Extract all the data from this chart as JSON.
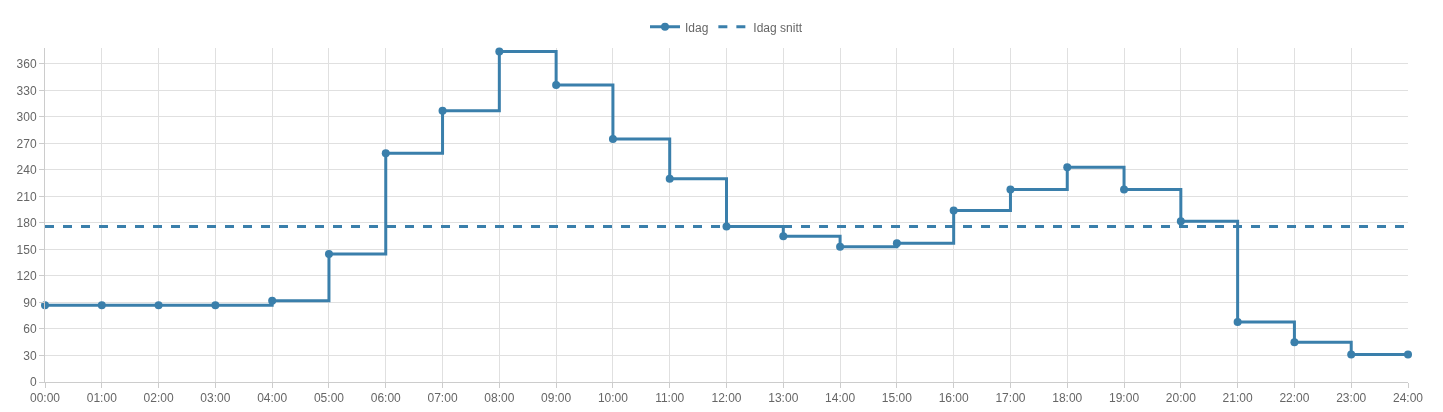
{
  "chart_data": {
    "type": "step",
    "x": [
      0,
      1,
      2,
      3,
      4,
      5,
      6,
      7,
      8,
      9,
      10,
      11,
      12,
      13,
      14,
      15,
      16,
      17,
      18,
      19,
      20,
      21,
      22,
      23,
      24
    ],
    "series": [
      {
        "name": "Idag",
        "color": "#3a7fab",
        "marker": "circle",
        "line_style": "solid",
        "values": [
          87,
          87,
          87,
          87,
          92,
          145,
          259,
          307,
          374,
          336,
          275,
          230,
          176,
          165,
          153,
          157,
          194,
          218,
          243,
          218,
          182,
          68,
          45,
          31,
          31
        ]
      },
      {
        "name": "Idag snitt",
        "type": "line",
        "color": "#3a7fab",
        "marker": "none",
        "line_style": "dashed",
        "values": [
          176,
          176,
          176,
          176,
          176,
          176,
          176,
          176,
          176,
          176,
          176,
          176,
          176,
          176,
          176,
          176,
          176,
          176,
          176,
          176,
          176,
          176,
          176,
          176,
          176
        ]
      }
    ],
    "xlim": [
      0,
      24
    ],
    "xticks": [
      {
        "value": 0,
        "label": "00:00"
      },
      {
        "value": 1,
        "label": "01:00"
      },
      {
        "value": 2,
        "label": "02:00"
      },
      {
        "value": 3,
        "label": "03:00"
      },
      {
        "value": 4,
        "label": "04:00"
      },
      {
        "value": 5,
        "label": "05:00"
      },
      {
        "value": 6,
        "label": "06:00"
      },
      {
        "value": 7,
        "label": "07:00"
      },
      {
        "value": 8,
        "label": "08:00"
      },
      {
        "value": 9,
        "label": "09:00"
      },
      {
        "value": 10,
        "label": "10:00"
      },
      {
        "value": 11,
        "label": "11:00"
      },
      {
        "value": 12,
        "label": "12:00"
      },
      {
        "value": 13,
        "label": "13:00"
      },
      {
        "value": 14,
        "label": "14:00"
      },
      {
        "value": 15,
        "label": "15:00"
      },
      {
        "value": 16,
        "label": "16:00"
      },
      {
        "value": 17,
        "label": "17:00"
      },
      {
        "value": 18,
        "label": "18:00"
      },
      {
        "value": 19,
        "label": "19:00"
      },
      {
        "value": 20,
        "label": "20:00"
      },
      {
        "value": 21,
        "label": "21:00"
      },
      {
        "value": 22,
        "label": "22:00"
      },
      {
        "value": 23,
        "label": "23:00"
      },
      {
        "value": 24,
        "label": "24:00"
      }
    ],
    "ylim": [
      0,
      378
    ],
    "yticks": [
      0,
      30,
      60,
      90,
      120,
      150,
      180,
      210,
      240,
      270,
      300,
      330,
      360
    ],
    "grid": true,
    "legend": "top"
  }
}
